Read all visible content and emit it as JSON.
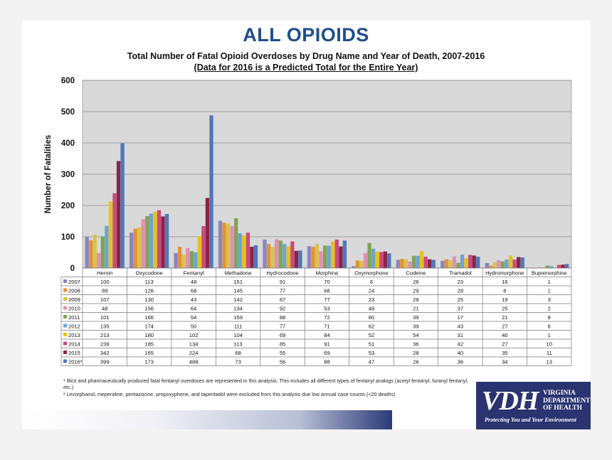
{
  "page": {
    "heading": "ALL OPIOIDS",
    "footnotes": [
      "¹ Illicit and pharmaceutically produced fatal fentanyl overdoses are represented in this analysis. This includes all different types of fentanyl analogs (acetyl fentanyl, furanyl fentanyl, etc.)",
      "² Levorphanol, meperidine, pentazocine, propoxyphene, and tapentadol were excluded from this analysis due low annual case counts (<20 deaths)"
    ]
  },
  "logo": {
    "letters": "VDH",
    "name_lines": [
      "VIRGINIA",
      "DEPARTMENT",
      "OF HEALTH"
    ],
    "tagline": "Protecting You and Your Environment",
    "colors": {
      "background": "#2b3470",
      "text": "#ffffff"
    }
  },
  "chart_data": {
    "type": "bar",
    "title": "Total Number of Fatal Opioid Overdoses by Drug Name and Year of Death, 2007-2016",
    "subtitle": "(Data for 2016 is a Predicted Total for the Entire Year)",
    "xlabel": "",
    "ylabel": "Number of Fatalities",
    "ylim": [
      0,
      600
    ],
    "yticks": [
      0,
      100,
      200,
      300,
      400,
      500,
      600
    ],
    "grid": true,
    "legend": "data-table-left",
    "plot_background": "#d9d9d9",
    "categories": [
      "Heroin",
      "Oxycodone",
      "Fentanyl",
      "Methadone",
      "Hydrocodone",
      "Morphine",
      "Oxymorphone",
      "Codeine",
      "Tramadol",
      "Hydromorphone",
      "Buprenorphine"
    ],
    "series": [
      {
        "name": "2007",
        "color": "#8a85c0",
        "values": [
          100,
          113,
          48,
          151,
          91,
          70,
          6,
          26,
          23,
          16,
          1
        ]
      },
      {
        "name": "2008",
        "color": "#e4913a",
        "values": [
          89,
          126,
          68,
          145,
          77,
          68,
          24,
          29,
          28,
          8,
          1
        ]
      },
      {
        "name": "2009",
        "color": "#d7c44a",
        "values": [
          107,
          130,
          43,
          142,
          67,
          77,
          23,
          28,
          25,
          19,
          3
        ]
      },
      {
        "name": "2010",
        "color": "#e08fb4",
        "values": [
          48,
          156,
          64,
          134,
          92,
          53,
          48,
          21,
          37,
          25,
          2
        ]
      },
      {
        "name": "2011",
        "color": "#82a357",
        "values": [
          101,
          166,
          54,
          159,
          88,
          72,
          80,
          39,
          17,
          21,
          8
        ]
      },
      {
        "name": "2012",
        "color": "#6ba6d0",
        "values": [
          135,
          174,
          50,
          111,
          77,
          71,
          62,
          39,
          43,
          27,
          6
        ]
      },
      {
        "name": "2013",
        "color": "#e8c11a",
        "values": [
          213,
          180,
          102,
          104,
          69,
          84,
          52,
          54,
          31,
          40,
          1
        ]
      },
      {
        "name": "2014",
        "color": "#c94a7c",
        "values": [
          239,
          185,
          134,
          113,
          85,
          91,
          51,
          36,
          42,
          27,
          10
        ]
      },
      {
        "name": "2015",
        "color": "#8c2347",
        "values": [
          342,
          165,
          224,
          68,
          55,
          69,
          53,
          28,
          40,
          35,
          11
        ]
      },
      {
        "name": "2016*",
        "color": "#4f78b8",
        "values": [
          399,
          173,
          488,
          73,
          56,
          88,
          47,
          26,
          36,
          34,
          13
        ]
      }
    ]
  }
}
